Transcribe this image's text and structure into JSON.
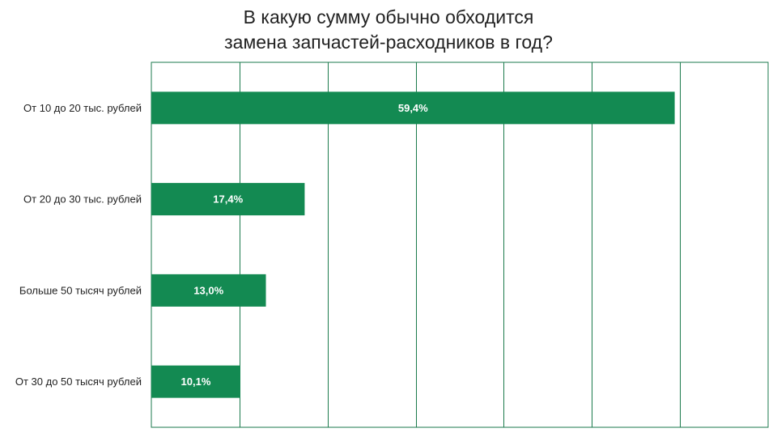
{
  "chart_data": {
    "type": "bar",
    "orientation": "horizontal",
    "title": [
      "В какую сумму обычно обходится",
      "замена запчастей-расходников в год?"
    ],
    "categories": [
      "От 10 до 20 тыс. рублей",
      "От 20 до 30 тыс. рублей",
      "Больше 50 тысяч рублей",
      "От 30 до 50 тысяч рублей"
    ],
    "values": [
      59.4,
      17.4,
      13.0,
      10.1
    ],
    "value_labels": [
      "59,4%",
      "17,4%",
      "13,0%",
      "10,1%"
    ],
    "xlim": [
      0,
      70
    ],
    "x_grid_step": 10,
    "grid": true,
    "legend": "none",
    "colors": {
      "bar": "#138a52",
      "grid": "#1b7a4c",
      "bar_label": "#ffffff",
      "text": "#222222"
    }
  }
}
